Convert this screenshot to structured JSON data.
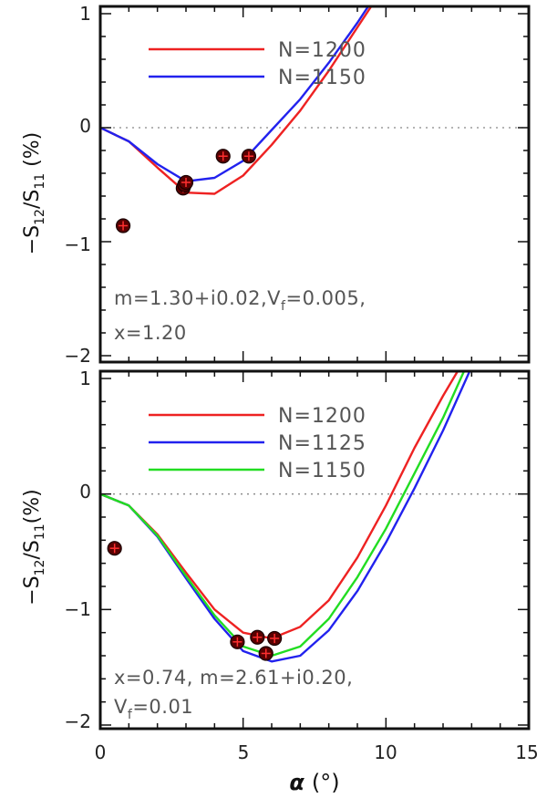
{
  "chart_data": [
    {
      "type": "line",
      "panel": "top",
      "ylabel": "−S12/S11 (%)",
      "ylabel_parts": {
        "prefix": "−S",
        "sub1": "12",
        "mid": "/S",
        "sub2": "11",
        "suffix": " (%)"
      },
      "xlabel": "",
      "xlim": [
        0,
        15
      ],
      "ylim": [
        -2,
        1
      ],
      "xticks": [
        "",
        "",
        "",
        ""
      ],
      "yticks": [
        "1",
        "0",
        "−1",
        "−2"
      ],
      "ytick_values": [
        1,
        0,
        -1,
        -2
      ],
      "zero_line": true,
      "series": [
        {
          "name": "N=1200",
          "color": "#ee2222",
          "x": [
            0,
            1,
            2,
            3,
            4,
            5,
            6,
            7,
            8,
            9,
            10,
            10.5
          ],
          "y": [
            0,
            -0.12,
            -0.35,
            -0.57,
            -0.58,
            -0.42,
            -0.15,
            0.15,
            0.5,
            0.88,
            1.26,
            1.5
          ]
        },
        {
          "name": "N=1150",
          "color": "#2222ee",
          "x": [
            0,
            1,
            2,
            3,
            4,
            5,
            6,
            7,
            8,
            9,
            10
          ],
          "y": [
            0,
            -0.12,
            -0.32,
            -0.47,
            -0.44,
            -0.29,
            -0.02,
            0.25,
            0.57,
            0.92,
            1.3
          ]
        }
      ],
      "points": {
        "x": [
          0.8,
          2.9,
          2.95,
          3.0,
          4.3,
          5.2
        ],
        "y": [
          -0.86,
          -0.53,
          -0.5,
          -0.48,
          -0.25,
          -0.25
        ]
      },
      "annotation": {
        "line1_a": "m=1.30+i0.02,V",
        "line1_sub": "f",
        "line1_b": "=0.005,",
        "line2": "x=1.20"
      }
    },
    {
      "type": "line",
      "panel": "bottom",
      "ylabel": "−S12/S11(%)",
      "ylabel_parts": {
        "prefix": "−S",
        "sub1": "12",
        "mid": "/S",
        "sub2": "11",
        "suffix": "(%)"
      },
      "xlabel": "α (°)",
      "xlabel_parts": {
        "sym": "α",
        "unit": "(°)"
      },
      "xlim": [
        0,
        15
      ],
      "ylim": [
        -2,
        1
      ],
      "xticks": [
        "0",
        "5",
        "10",
        "15"
      ],
      "xtick_values": [
        0,
        5,
        10,
        15
      ],
      "yticks": [
        "1",
        "0",
        "−1",
        "−2"
      ],
      "ytick_values": [
        1,
        0,
        -1,
        -2
      ],
      "zero_line": true,
      "series": [
        {
          "name": "N=1200",
          "color": "#ee2222",
          "x": [
            0,
            1,
            2,
            3,
            4,
            5,
            6,
            7,
            8,
            9,
            10,
            11,
            12,
            12.6
          ],
          "y": [
            0,
            -0.1,
            -0.35,
            -0.68,
            -1.0,
            -1.2,
            -1.25,
            -1.15,
            -0.92,
            -0.55,
            -0.1,
            0.4,
            0.85,
            1.1
          ]
        },
        {
          "name": "N=1125",
          "color": "#2222ee",
          "x": [
            0,
            1,
            2,
            3,
            4,
            5,
            6,
            7,
            8,
            9,
            10,
            11,
            12,
            13
          ],
          "y": [
            0,
            -0.1,
            -0.37,
            -0.73,
            -1.08,
            -1.36,
            -1.45,
            -1.4,
            -1.18,
            -0.84,
            -0.42,
            0.05,
            0.55,
            1.1
          ]
        },
        {
          "name": "N=1150",
          "color": "#22dd22",
          "x": [
            0,
            1,
            2,
            3,
            4,
            5,
            6,
            7,
            8,
            9,
            10,
            11,
            12,
            12.8
          ],
          "y": [
            0,
            -0.1,
            -0.36,
            -0.71,
            -1.05,
            -1.32,
            -1.4,
            -1.32,
            -1.08,
            -0.72,
            -0.3,
            0.18,
            0.66,
            1.1
          ]
        }
      ],
      "points": {
        "x": [
          0.5,
          4.8,
          5.5,
          5.8,
          6.1
        ],
        "y": [
          -0.47,
          -1.28,
          -1.24,
          -1.38,
          -1.25
        ]
      },
      "annotation": {
        "line1": "x=0.74,  m=2.61+i0.20,",
        "line2_a": "V",
        "line2_sub": "f",
        "line2_b": "=0.01"
      }
    }
  ],
  "colors": {
    "axis": "#111111",
    "zero_line": "#888888",
    "marker_fill": "#5a0000",
    "marker_cross": "#ff3030"
  }
}
